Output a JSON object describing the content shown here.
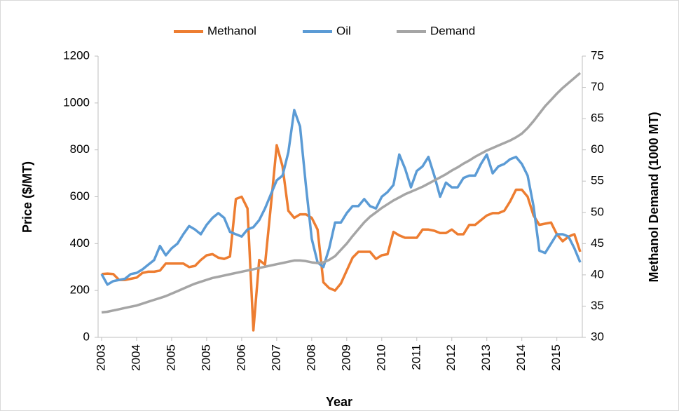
{
  "chart_data": {
    "type": "line",
    "x_label": "Year",
    "y_label": "Price ($/MT)",
    "y2_label": "Methanol Demand (1000 MT)",
    "legend": "top",
    "categories": [
      "2003",
      null,
      null,
      null,
      null,
      null,
      "2004",
      null,
      null,
      null,
      null,
      null,
      "2005",
      null,
      null,
      null,
      null,
      null,
      "2005",
      null,
      null,
      null,
      null,
      null,
      "2006",
      null,
      null,
      null,
      null,
      null,
      "2007",
      null,
      null,
      null,
      null,
      null,
      "2008",
      null,
      null,
      null,
      null,
      null,
      "2009",
      null,
      null,
      null,
      null,
      null,
      "2010",
      null,
      null,
      null,
      null,
      null,
      "2011",
      null,
      null,
      null,
      null,
      null,
      "2012",
      null,
      null,
      null,
      null,
      null,
      "2013",
      null,
      null,
      null,
      null,
      null,
      "2014",
      null,
      null,
      null,
      null,
      null,
      "2015",
      null,
      null,
      null,
      null
    ],
    "ylim": [
      0,
      1200
    ],
    "yticks": [
      0,
      200,
      400,
      600,
      800,
      1000,
      1200
    ],
    "y2lim": [
      30,
      75
    ],
    "y2ticks": [
      30,
      35,
      40,
      45,
      50,
      55,
      60,
      65,
      70,
      75
    ],
    "series": [
      {
        "name": "Methanol",
        "color": "#ed7d31",
        "values": [
          270,
          272,
          270,
          245,
          245,
          250,
          255,
          275,
          280,
          280,
          285,
          315,
          315,
          315,
          315,
          300,
          305,
          330,
          350,
          355,
          340,
          335,
          345,
          590,
          600,
          550,
          30,
          330,
          310,
          560,
          820,
          730,
          540,
          510,
          525,
          525,
          510,
          460,
          235,
          210,
          200,
          230,
          285,
          340,
          365,
          365,
          365,
          335,
          350,
          355,
          450,
          435,
          425,
          425,
          425,
          460,
          460,
          455,
          445,
          445,
          460,
          440,
          440,
          480,
          480,
          500,
          520,
          530,
          530,
          540,
          580,
          630,
          630,
          600,
          520,
          480,
          485,
          490,
          440,
          410,
          430,
          440,
          365
        ]
      },
      {
        "name": "Oil",
        "color": "#5b9bd5",
        "values": [
          270,
          225,
          240,
          245,
          250,
          270,
          275,
          290,
          310,
          330,
          390,
          350,
          380,
          400,
          440,
          475,
          460,
          440,
          480,
          510,
          530,
          510,
          450,
          440,
          430,
          460,
          470,
          500,
          550,
          610,
          670,
          690,
          790,
          970,
          900,
          650,
          420,
          320,
          300,
          380,
          490,
          490,
          530,
          560,
          560,
          590,
          560,
          550,
          600,
          620,
          650,
          780,
          720,
          640,
          710,
          730,
          770,
          690,
          600,
          660,
          640,
          640,
          680,
          690,
          690,
          740,
          780,
          700,
          730,
          740,
          760,
          770,
          740,
          690,
          560,
          370,
          360,
          400,
          440,
          440,
          430,
          380,
          320
        ]
      },
      {
        "name": "Demand",
        "color": "#a5a5a5",
        "axis": "y2",
        "values": [
          34,
          34.1,
          34.3,
          34.5,
          34.7,
          34.9,
          35.1,
          35.4,
          35.7,
          36,
          36.3,
          36.6,
          37,
          37.4,
          37.8,
          38.2,
          38.6,
          38.9,
          39.2,
          39.5,
          39.7,
          39.9,
          40.1,
          40.3,
          40.5,
          40.7,
          40.9,
          41.1,
          41.3,
          41.5,
          41.7,
          41.9,
          42.1,
          42.3,
          42.3,
          42.2,
          42,
          41.9,
          42,
          42.4,
          43,
          44,
          45,
          46.2,
          47.3,
          48.4,
          49.3,
          50,
          50.7,
          51.3,
          51.9,
          52.4,
          52.9,
          53.3,
          53.7,
          54.1,
          54.6,
          55.1,
          55.6,
          56.1,
          56.7,
          57.2,
          57.8,
          58.3,
          58.9,
          59.4,
          59.9,
          60.3,
          60.7,
          61.1,
          61.5,
          62,
          62.6,
          63.5,
          64.6,
          65.8,
          67,
          68,
          69,
          69.9,
          70.7,
          71.5,
          72.3
        ]
      }
    ]
  }
}
